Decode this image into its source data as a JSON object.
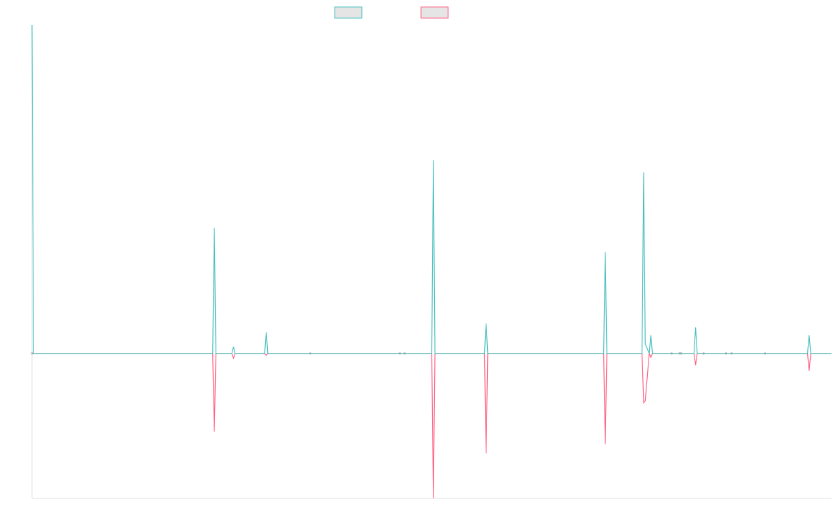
{
  "chart_data": {
    "type": "line",
    "title": "",
    "xlabel": "",
    "ylabel": "",
    "legend_position": "top-center",
    "grid": false,
    "ylim": [
      -30,
      68
    ],
    "xlim": [
      0,
      1000
    ],
    "x": [
      0,
      2,
      226,
      228,
      230,
      250,
      252,
      254,
      291,
      293,
      295,
      348,
      460,
      466,
      500,
      502,
      504,
      566,
      568,
      570,
      715,
      717,
      719,
      763,
      765,
      767,
      772,
      774,
      776,
      800,
      810,
      812,
      828,
      830,
      832,
      840,
      868,
      875,
      917,
      970,
      972,
      974,
      1000
    ],
    "series": [
      {
        "name": "",
        "color": "#4bc0c0",
        "fill": "#e5e5e5",
        "values": [
          68,
          0,
          0,
          26,
          0,
          0,
          1.4,
          0,
          0,
          4.4,
          0,
          0,
          0,
          0,
          0,
          40,
          0,
          0,
          6.2,
          0,
          0,
          21,
          0,
          0,
          37.5,
          2,
          0,
          3.8,
          0,
          0,
          0,
          0,
          0,
          5.4,
          0,
          0,
          0,
          0,
          0,
          0,
          3.8,
          0,
          0
        ]
      },
      {
        "name": "",
        "color": "#ff6384",
        "fill": "#e5e5e5",
        "values": [
          0,
          0,
          0,
          -16.2,
          0,
          0,
          -1,
          0,
          0,
          -0.4,
          0,
          0,
          0,
          0,
          0,
          -30,
          0,
          0,
          -20.7,
          0,
          0,
          -18.8,
          0,
          0,
          -10.2,
          -9.8,
          0,
          -0.8,
          0,
          0,
          0,
          0,
          0,
          -2.4,
          0,
          0,
          0,
          0,
          0,
          0,
          -3.6,
          0,
          0
        ]
      }
    ]
  }
}
